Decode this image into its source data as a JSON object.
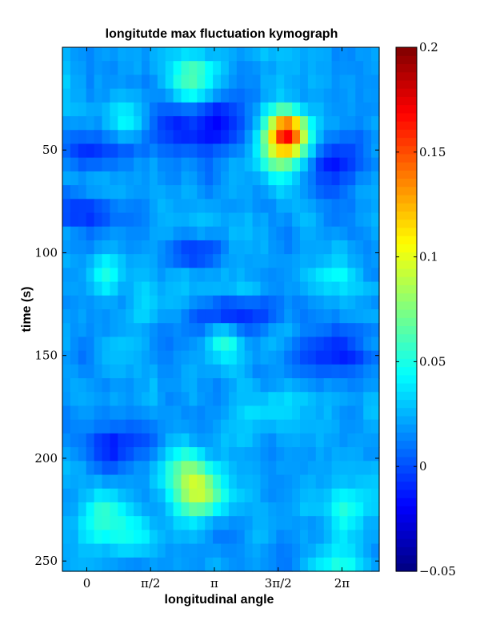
{
  "chart_data": {
    "type": "heatmap",
    "title": "longitutde max fluctuation kymograph",
    "xlabel": "longitudinal angle",
    "ylabel": "time (s)",
    "x_range": [
      -0.6,
      7.2
    ],
    "y_range": [
      0,
      255
    ],
    "y_reversed": true,
    "x_ticks": [
      {
        "value": 0,
        "label": "0"
      },
      {
        "value": 1.5708,
        "label": "π/2"
      },
      {
        "value": 3.1416,
        "label": "π"
      },
      {
        "value": 4.7124,
        "label": "3π/2"
      },
      {
        "value": 6.2832,
        "label": "2π"
      }
    ],
    "y_ticks": [
      {
        "value": 50,
        "label": "50"
      },
      {
        "value": 100,
        "label": "100"
      },
      {
        "value": 150,
        "label": "150"
      },
      {
        "value": 200,
        "label": "200"
      },
      {
        "value": 250,
        "label": "250"
      }
    ],
    "colormap": "jet",
    "colorbar": {
      "range": [
        -0.05,
        0.2
      ],
      "ticks": [
        {
          "value": 0.2,
          "label": "0.2"
        },
        {
          "value": 0.15,
          "label": "0.15"
        },
        {
          "value": 0.1,
          "label": "0.1"
        },
        {
          "value": 0.05,
          "label": "0.05"
        },
        {
          "value": 0,
          "label": "0"
        },
        {
          "value": -0.05,
          "label": "−0.05"
        }
      ]
    },
    "baseline": 0.02,
    "background_field": {
      "rows": 38,
      "cols": 40,
      "mean": 0.02,
      "amplitude": 0.018
    },
    "hotspots": [
      {
        "x": 4.95,
        "t": 41,
        "value": 0.14,
        "sx": 0.35,
        "st": 7
      },
      {
        "x": 4.75,
        "t": 52,
        "value": 0.08,
        "sx": 0.5,
        "st": 10
      },
      {
        "x": 2.8,
        "t": 218,
        "value": 0.085,
        "sx": 0.45,
        "st": 8
      },
      {
        "x": 2.4,
        "t": 206,
        "value": 0.06,
        "sx": 0.45,
        "st": 8
      },
      {
        "x": 2.6,
        "t": 15,
        "value": 0.065,
        "sx": 0.4,
        "st": 9
      },
      {
        "x": 3.4,
        "t": 143,
        "value": 0.055,
        "sx": 0.35,
        "st": 7
      },
      {
        "x": 0.5,
        "t": 110,
        "value": 0.045,
        "sx": 0.4,
        "st": 6
      },
      {
        "x": 6.0,
        "t": 112,
        "value": 0.045,
        "sx": 0.4,
        "st": 6
      },
      {
        "x": 1.0,
        "t": 37,
        "value": 0.04,
        "sx": 0.4,
        "st": 7
      },
      {
        "x": 0.4,
        "t": 228,
        "value": 0.05,
        "sx": 0.5,
        "st": 8
      },
      {
        "x": 6.3,
        "t": 225,
        "value": 0.045,
        "sx": 0.5,
        "st": 8
      },
      {
        "x": 1.5,
        "t": 125,
        "value": 0.035,
        "sx": 0.35,
        "st": 8
      },
      {
        "x": 4.0,
        "t": 118,
        "value": 0.035,
        "sx": 0.4,
        "st": 7
      },
      {
        "x": 1.0,
        "t": 240,
        "value": 0.045,
        "sx": 0.5,
        "st": 7
      },
      {
        "x": 6.2,
        "t": 250,
        "value": 0.045,
        "sx": 0.5,
        "st": 5
      },
      {
        "x": 4.6,
        "t": 175,
        "value": 0.035,
        "sx": 0.5,
        "st": 7
      }
    ],
    "coldspots": [
      {
        "x": 3.0,
        "t": 40,
        "value": -0.02,
        "sx": 0.8,
        "st": 11
      },
      {
        "x": 0.3,
        "t": 50,
        "value": -0.012,
        "sx": 0.5,
        "st": 7
      },
      {
        "x": 6.0,
        "t": 55,
        "value": -0.012,
        "sx": 0.6,
        "st": 10
      },
      {
        "x": 0.0,
        "t": 80,
        "value": -0.01,
        "sx": 0.6,
        "st": 6
      },
      {
        "x": 3.7,
        "t": 130,
        "value": -0.012,
        "sx": 0.8,
        "st": 6
      },
      {
        "x": 2.5,
        "t": 100,
        "value": -0.01,
        "sx": 0.5,
        "st": 5
      },
      {
        "x": 0.6,
        "t": 195,
        "value": -0.01,
        "sx": 0.6,
        "st": 8
      },
      {
        "x": 6.0,
        "t": 150,
        "value": -0.01,
        "sx": 0.6,
        "st": 8
      }
    ]
  }
}
